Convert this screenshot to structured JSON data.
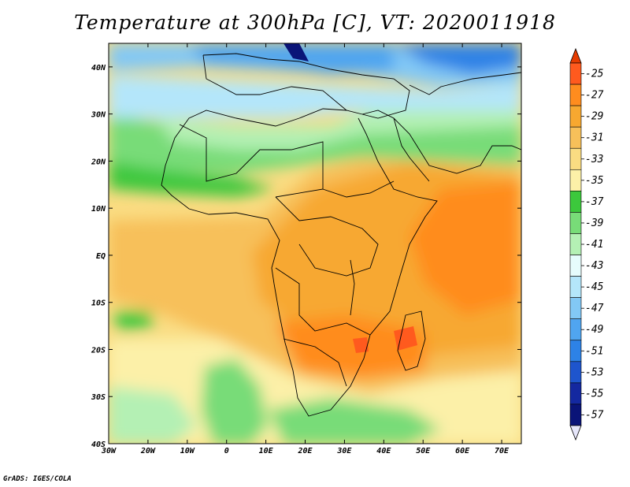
{
  "title": "Temperature at 300hPa [C], VT: 2020011918",
  "credit": "GrADS: IGES/COLA",
  "map": {
    "lat_labels": [
      "40N",
      "30N",
      "20N",
      "10N",
      "EQ",
      "10S",
      "20S",
      "30S",
      "40S"
    ],
    "lon_labels": [
      "30W",
      "20W",
      "10W",
      "0",
      "10E",
      "20E",
      "30E",
      "40E",
      "50E",
      "60E",
      "70E"
    ],
    "lat_range": [
      -40,
      45
    ],
    "lon_range": [
      -30,
      75
    ]
  },
  "colorbar": {
    "labels": [
      "-25",
      "-27",
      "-29",
      "-31",
      "-33",
      "-35",
      "-37",
      "-39",
      "-41",
      "-43",
      "-45",
      "-47",
      "-49",
      "-51",
      "-53",
      "-55",
      "-57"
    ],
    "colors": [
      "#ff5a1e",
      "#ff8c1e",
      "#f7a830",
      "#f7c05a",
      "#fadc82",
      "#fcf0a8",
      "#3cc83c",
      "#78dc78",
      "#b4f0b4",
      "#e6fcfc",
      "#b4e6fa",
      "#82c8f5",
      "#50a5f0",
      "#2d82e6",
      "#1e55cd",
      "#1428a0",
      "#0a1478"
    ],
    "top_color": "#e63c00",
    "bottom_color": "#e6e6fa"
  }
}
